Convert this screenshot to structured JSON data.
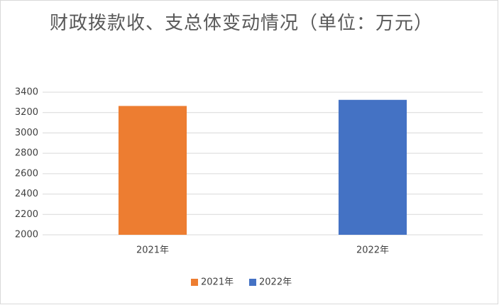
{
  "chart_data": {
    "type": "bar",
    "title": "财政拨款收、支总体变动情况（单位：万元）",
    "categories": [
      "2021年",
      "2022年"
    ],
    "series": [
      {
        "name": "2021年",
        "color": "#ed7d31",
        "values": [
          3265,
          null
        ]
      },
      {
        "name": "2022年",
        "color": "#4472c4",
        "values": [
          null,
          3325
        ]
      }
    ],
    "ylim": [
      2000,
      3400
    ],
    "yticks": [
      2000,
      2200,
      2400,
      2600,
      2800,
      3000,
      3200,
      3400
    ],
    "grid": true,
    "legend": "bottom"
  }
}
